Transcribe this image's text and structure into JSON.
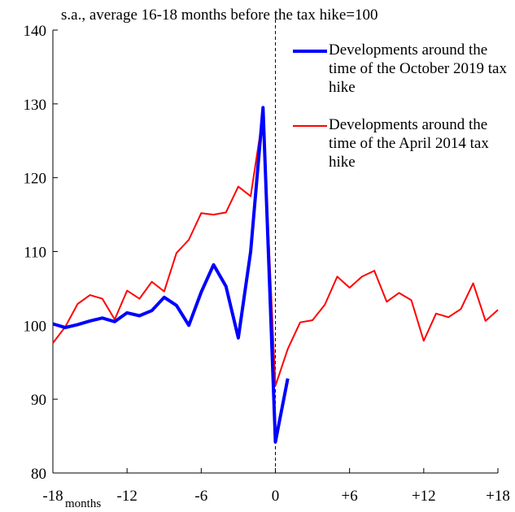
{
  "chart_data": {
    "type": "line",
    "subtitle": "s.a., average  16-18 months  before  the tax hike=100",
    "x_label": "months",
    "x": [
      -18,
      -17,
      -16,
      -15,
      -14,
      -13,
      -12,
      -11,
      -10,
      -9,
      -8,
      -7,
      -6,
      -5,
      -4,
      -3,
      -2,
      -1,
      0,
      1,
      2,
      3,
      4,
      5,
      6,
      7,
      8,
      9,
      10,
      11,
      12,
      13,
      14,
      15,
      16,
      17,
      18
    ],
    "series": [
      {
        "name": "Developments around the time of the October 2019 tax hike",
        "color": "#0000ff",
        "values": [
          100.2,
          99.7,
          100.1,
          100.6,
          101.0,
          100.5,
          101.7,
          101.3,
          102.0,
          103.8,
          102.7,
          100.0,
          104.5,
          108.2,
          105.3,
          98.3,
          110.0,
          129.5,
          84.2,
          92.8,
          null,
          null,
          null,
          null,
          null,
          null,
          null,
          null,
          null,
          null,
          null,
          null,
          null,
          null,
          null,
          null,
          null
        ]
      },
      {
        "name": "Developments around the time of the April 2014 tax hike",
        "color": "#ff0000",
        "values": [
          97.6,
          99.8,
          102.9,
          104.1,
          103.6,
          100.8,
          104.7,
          103.6,
          105.9,
          104.6,
          109.8,
          111.6,
          115.2,
          115.0,
          115.3,
          118.8,
          117.5,
          128.5,
          91.8,
          96.8,
          100.4,
          100.7,
          102.8,
          106.6,
          105.1,
          106.6,
          107.4,
          103.2,
          104.4,
          103.4,
          97.9,
          101.6,
          101.1,
          102.2,
          105.7,
          100.6,
          102.1
        ]
      }
    ],
    "xlim": [
      -18,
      18
    ],
    "xticks": [
      -18,
      -12,
      -6,
      0,
      {
        "value": 6,
        "label": "+6"
      },
      {
        "value": 12,
        "label": "+12"
      },
      {
        "value": 18,
        "label": "+18"
      }
    ],
    "ylim": [
      80,
      140
    ],
    "yticks": [
      80,
      90,
      100,
      110,
      120,
      130,
      140
    ],
    "reference_line_x": 0
  }
}
